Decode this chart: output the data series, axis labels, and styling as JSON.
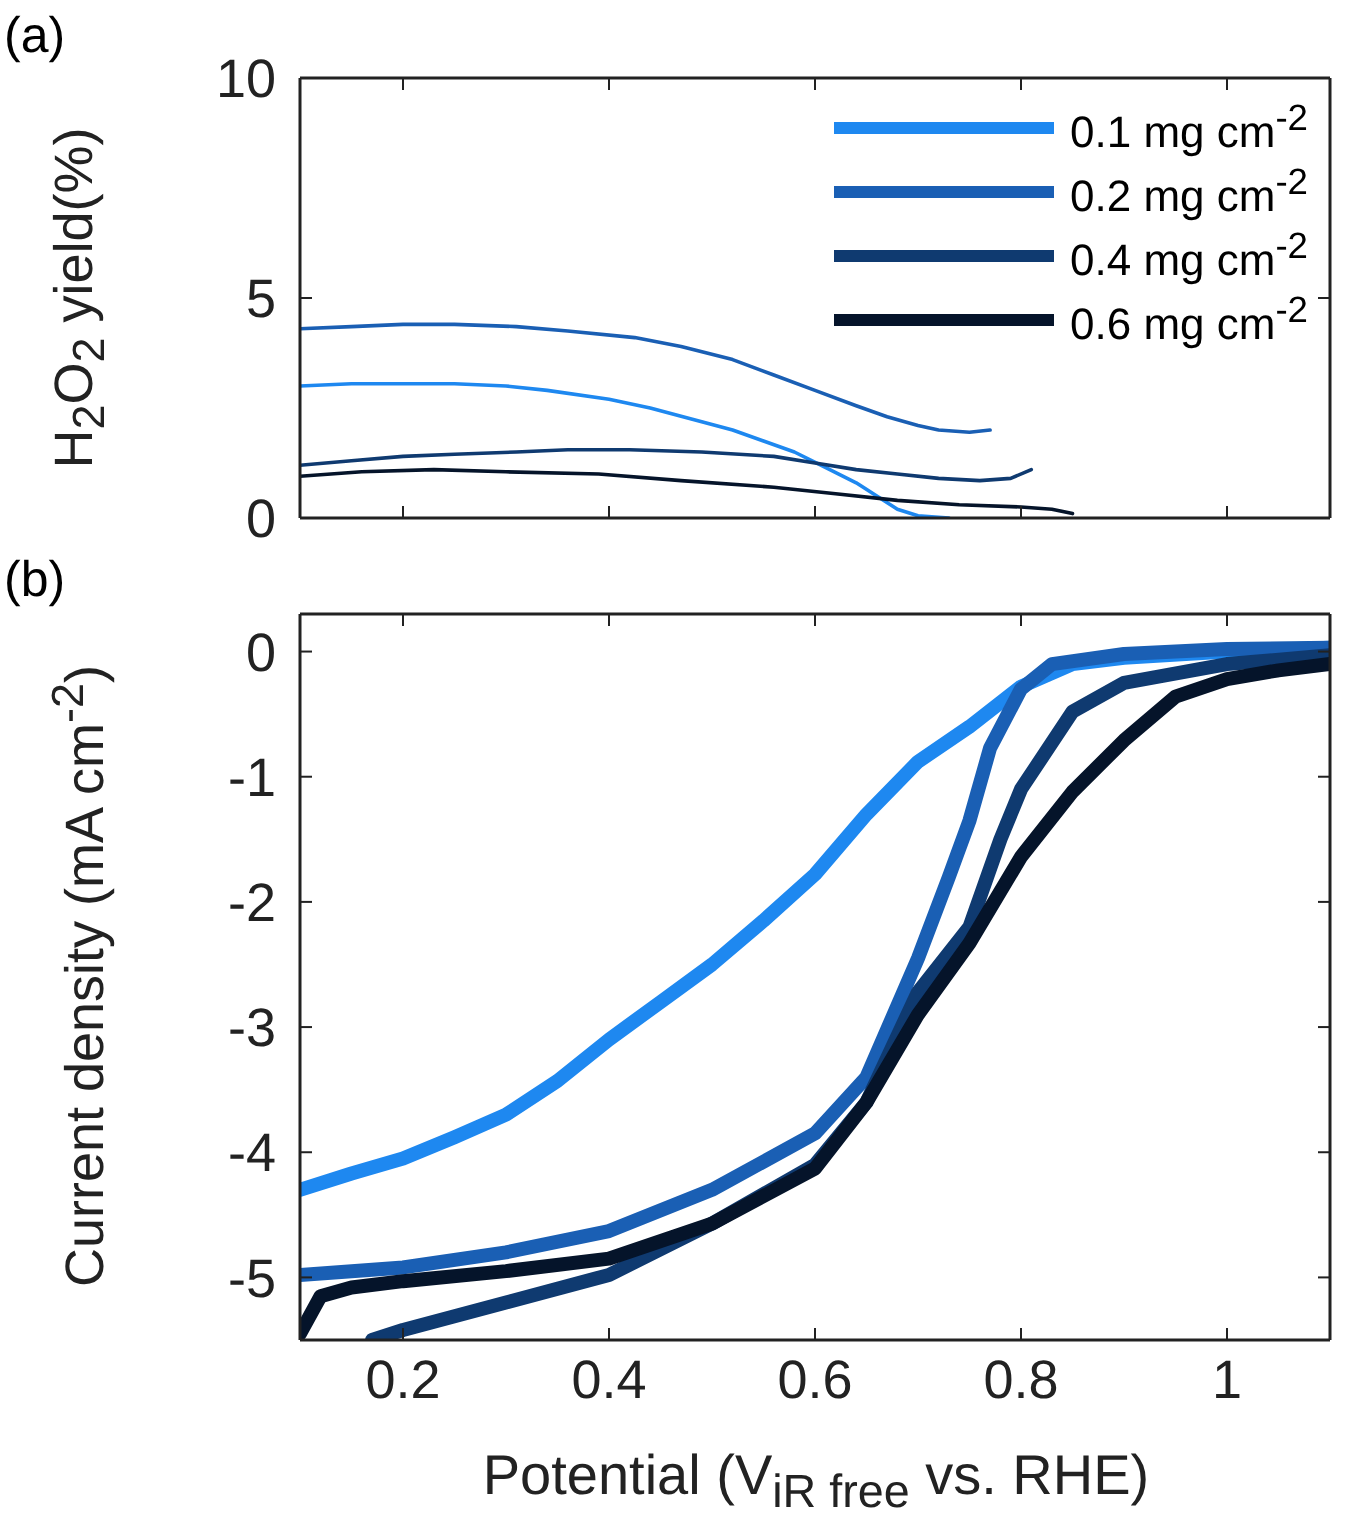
{
  "chart_data": [
    {
      "type": "line",
      "ylabel": "H$_{2}$O$_{2}$ yield(%)",
      "annotations": [
        "(a)"
      ],
      "legend": "top right",
      "tick_labels": "y",
      "xlim": [
        0.1,
        1.1
      ],
      "xticks": [
        0.2,
        0.4,
        0.6,
        0.8,
        1
      ],
      "ylim": [
        0,
        10
      ],
      "yticks": [
        0,
        5,
        10
      ],
      "series": [
        {
          "name": "0.1 mg cm$^{-2}$",
          "color": "#1e88f0",
          "x": [
            0.1,
            0.15,
            0.2,
            0.25,
            0.3,
            0.34,
            0.4,
            0.44,
            0.48,
            0.52,
            0.55,
            0.58,
            0.61,
            0.64,
            0.66,
            0.68,
            0.7,
            0.73
          ],
          "values": [
            3.0,
            3.05,
            3.05,
            3.05,
            3.0,
            2.9,
            2.7,
            2.5,
            2.25,
            2.0,
            1.75,
            1.5,
            1.15,
            0.8,
            0.5,
            0.2,
            0.05,
            0
          ]
        },
        {
          "name": "0.2 mg cm$^{-2}$",
          "color": "#1a5fb4",
          "x": [
            0.1,
            0.15,
            0.2,
            0.25,
            0.31,
            0.36,
            0.425,
            0.47,
            0.52,
            0.56,
            0.6,
            0.64,
            0.67,
            0.7,
            0.72,
            0.75,
            0.77
          ],
          "values": [
            4.3,
            4.35,
            4.4,
            4.4,
            4.35,
            4.25,
            4.1,
            3.9,
            3.6,
            3.25,
            2.9,
            2.55,
            2.3,
            2.1,
            2.0,
            1.95,
            2.0
          ]
        },
        {
          "name": "0.4 mg cm$^{-2}$",
          "color": "#0f3a70",
          "x": [
            0.1,
            0.15,
            0.2,
            0.25,
            0.31,
            0.36,
            0.42,
            0.49,
            0.56,
            0.6,
            0.64,
            0.68,
            0.72,
            0.76,
            0.79,
            0.81
          ],
          "values": [
            1.2,
            1.3,
            1.4,
            1.45,
            1.5,
            1.55,
            1.55,
            1.5,
            1.4,
            1.25,
            1.1,
            1.0,
            0.9,
            0.85,
            0.9,
            1.1
          ]
        },
        {
          "name": "0.6 mg cm$^{-2}$",
          "color": "#05142a",
          "x": [
            0.1,
            0.16,
            0.23,
            0.3,
            0.39,
            0.47,
            0.56,
            0.62,
            0.68,
            0.74,
            0.8,
            0.83,
            0.85
          ],
          "values": [
            0.95,
            1.05,
            1.1,
            1.05,
            1.0,
            0.85,
            0.7,
            0.55,
            0.4,
            0.3,
            0.25,
            0.2,
            0.1
          ]
        }
      ]
    },
    {
      "type": "line",
      "xlabel": "Potential (V$_{iR free}$ vs. RHE)",
      "ylabel": "Current density (mA cm$^{-2}$)",
      "annotations": [
        "(b)"
      ],
      "xlim": [
        0.1,
        1.1
      ],
      "xticks": [
        0.2,
        0.4,
        0.6,
        0.8,
        1
      ],
      "ylim": [
        -5.5,
        0.3
      ],
      "yticks": [
        -5,
        -4,
        -3,
        -2,
        -1,
        0
      ],
      "series": [
        {
          "color": "#1e88f0",
          "x": [
            0.1,
            0.15,
            0.2,
            0.25,
            0.3,
            0.35,
            0.4,
            0.45,
            0.5,
            0.55,
            0.6,
            0.65,
            0.7,
            0.75,
            0.8,
            0.85,
            0.9,
            1.0,
            1.1
          ],
          "values": [
            -4.3,
            -4.17,
            -4.05,
            -3.88,
            -3.7,
            -3.43,
            -3.1,
            -2.8,
            -2.5,
            -2.15,
            -1.78,
            -1.3,
            -0.88,
            -0.6,
            -0.28,
            -0.1,
            -0.05,
            0.0,
            0.03
          ]
        },
        {
          "color": "#1a5fb4",
          "x": [
            0.1,
            0.2,
            0.3,
            0.4,
            0.5,
            0.6,
            0.65,
            0.7,
            0.73,
            0.75,
            0.77,
            0.8,
            0.83,
            0.9,
            1.0,
            1.1
          ],
          "values": [
            -4.98,
            -4.92,
            -4.8,
            -4.63,
            -4.3,
            -3.85,
            -3.4,
            -2.45,
            -1.8,
            -1.35,
            -0.77,
            -0.3,
            -0.1,
            -0.02,
            0.02,
            0.03
          ]
        },
        {
          "color": "#0f3a70",
          "x": [
            0.17,
            0.2,
            0.3,
            0.4,
            0.5,
            0.6,
            0.65,
            0.7,
            0.75,
            0.78,
            0.8,
            0.85,
            0.9,
            1.0,
            1.1
          ],
          "values": [
            -5.5,
            -5.42,
            -5.2,
            -4.98,
            -4.57,
            -4.1,
            -3.6,
            -2.72,
            -2.2,
            -1.5,
            -1.1,
            -0.48,
            -0.25,
            -0.1,
            -0.03
          ]
        },
        {
          "color": "#05142a",
          "x": [
            0.1,
            0.12,
            0.15,
            0.2,
            0.3,
            0.4,
            0.5,
            0.6,
            0.65,
            0.7,
            0.75,
            0.8,
            0.85,
            0.9,
            0.95,
            1.0,
            1.05,
            1.1
          ],
          "values": [
            -5.45,
            -5.15,
            -5.08,
            -5.03,
            -4.95,
            -4.85,
            -4.57,
            -4.13,
            -3.6,
            -2.9,
            -2.33,
            -1.64,
            -1.12,
            -0.71,
            -0.36,
            -0.22,
            -0.15,
            -0.1
          ]
        }
      ]
    }
  ]
}
